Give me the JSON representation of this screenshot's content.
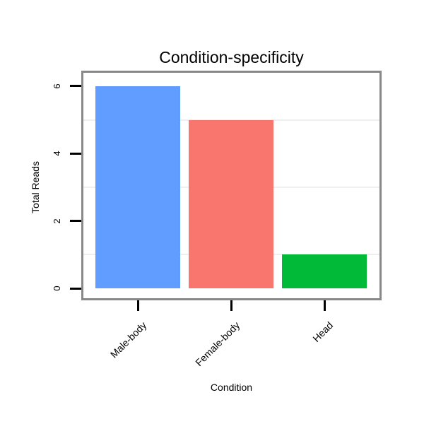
{
  "page": {
    "background": "#ffffff"
  },
  "chart_data": {
    "type": "bar",
    "title": "Condition-specificity",
    "xlabel": "Condition",
    "ylabel": "Total Reads",
    "categories": [
      "Male-body",
      "Female-body",
      "Head"
    ],
    "values": [
      6,
      5,
      1
    ],
    "bar_colors": [
      "#619CFF",
      "#F8766D",
      "#00BA38"
    ],
    "ytick_labels": [
      "0",
      "2",
      "4",
      "6"
    ],
    "ytick_values": [
      0,
      2,
      4,
      6
    ],
    "gridline_values": [
      1,
      3,
      5
    ],
    "ylim": [
      0,
      6.4
    ],
    "grid": true,
    "legend_position": "none",
    "frame_color": "#888888",
    "gridline_color": "#efefef",
    "tick_color": "#000000"
  }
}
